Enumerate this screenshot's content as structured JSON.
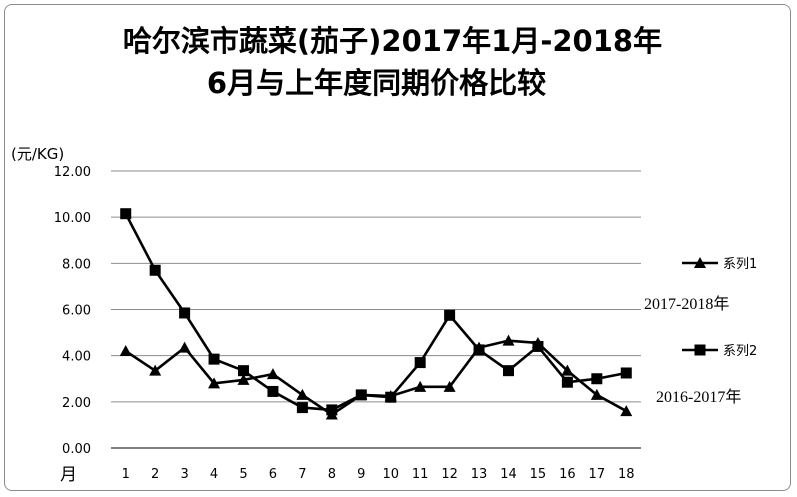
{
  "chart_data": {
    "type": "line",
    "title": "哈尔滨市蔬菜(茄子)2017年1月-2018年",
    "subtitle": "6月与上年度同期价格比较",
    "ylabel": "(元/KG)",
    "xlabel": "月",
    "ylim": [
      0,
      12
    ],
    "yticks": [
      "0.00",
      "2.00",
      "4.00",
      "6.00",
      "8.00",
      "10.00",
      "12.00"
    ],
    "categories": [
      "1",
      "2",
      "3",
      "4",
      "5",
      "6",
      "7",
      "8",
      "9",
      "10",
      "11",
      "12",
      "13",
      "14",
      "15",
      "16",
      "17",
      "18"
    ],
    "grid": "horizontal",
    "legend_position": "right",
    "series": [
      {
        "name": "系列1",
        "annotation": "2017-2018年",
        "marker": "triangle",
        "values": [
          4.2,
          3.35,
          4.35,
          2.8,
          2.95,
          3.2,
          2.3,
          1.45,
          2.3,
          2.25,
          2.65,
          2.65,
          4.35,
          4.65,
          4.55,
          3.35,
          2.3,
          1.6
        ]
      },
      {
        "name": "系列2",
        "annotation": "2016-2017年",
        "marker": "square",
        "values": [
          10.15,
          7.7,
          5.85,
          3.85,
          3.35,
          2.45,
          1.75,
          1.65,
          2.3,
          2.2,
          3.7,
          5.75,
          4.25,
          3.35,
          4.4,
          2.85,
          3.0,
          3.25
        ]
      }
    ]
  }
}
